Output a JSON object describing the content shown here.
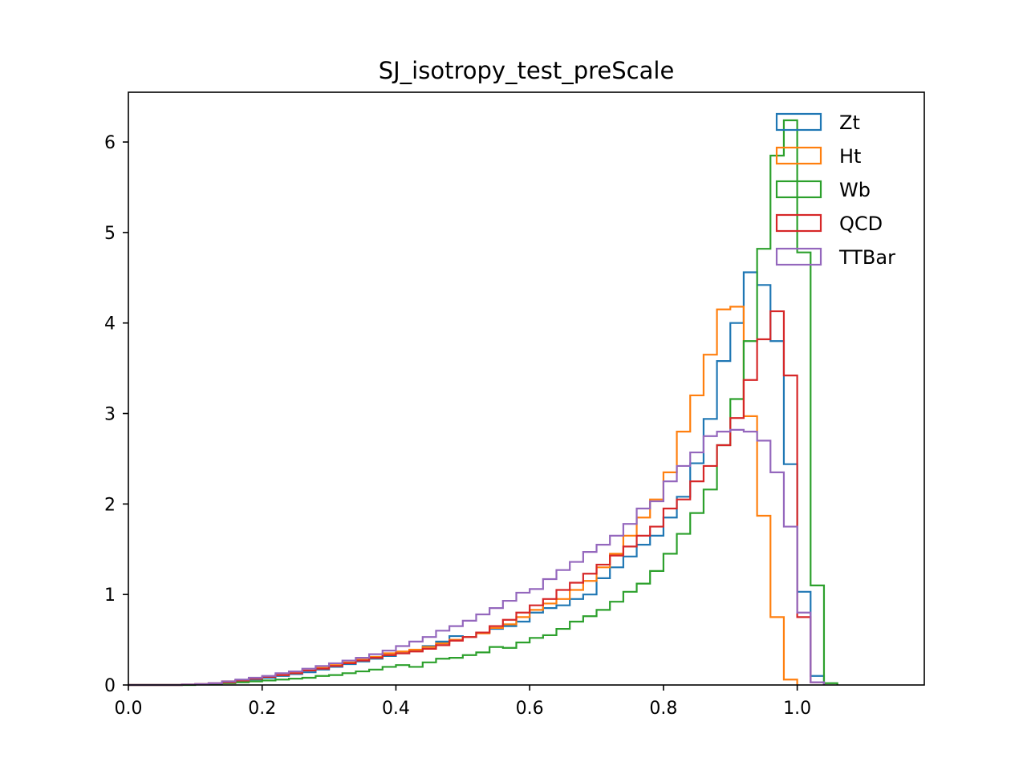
{
  "chart_data": {
    "type": "histogram-step",
    "title": "SJ_isotropy_test_preScale",
    "xlabel": "",
    "ylabel": "",
    "xlim": [
      0.0,
      1.19
    ],
    "ylim": [
      0,
      6.55
    ],
    "bin_start": 0.0,
    "bin_width": 0.02,
    "xticks": [
      0.0,
      0.2,
      0.4,
      0.6,
      0.8,
      1.0
    ],
    "xtick_labels": [
      "0.0",
      "0.2",
      "0.4",
      "0.6",
      "0.8",
      "1.0"
    ],
    "yticks": [
      0,
      1,
      2,
      3,
      4,
      5,
      6
    ],
    "ytick_labels": [
      "0",
      "1",
      "2",
      "3",
      "4",
      "5",
      "6"
    ],
    "grid": false,
    "legend_position": "top-right",
    "series": [
      {
        "name": "Zt",
        "color": "#1f77b4",
        "values": [
          0,
          0,
          0,
          0,
          0.005,
          0.01,
          0.02,
          0.03,
          0.05,
          0.06,
          0.08,
          0.1,
          0.12,
          0.14,
          0.17,
          0.2,
          0.23,
          0.26,
          0.29,
          0.32,
          0.35,
          0.38,
          0.43,
          0.48,
          0.54,
          0.53,
          0.58,
          0.62,
          0.65,
          0.7,
          0.8,
          0.85,
          0.88,
          0.95,
          1.0,
          1.18,
          1.3,
          1.42,
          1.55,
          1.65,
          1.85,
          2.08,
          2.45,
          2.94,
          3.58,
          4.0,
          4.56,
          4.42,
          3.8,
          2.44,
          1.03,
          0.1
        ]
      },
      {
        "name": "Ht",
        "color": "#ff7f0e",
        "values": [
          0,
          0,
          0,
          0,
          0.005,
          0.01,
          0.02,
          0.04,
          0.05,
          0.07,
          0.09,
          0.11,
          0.13,
          0.16,
          0.19,
          0.22,
          0.25,
          0.28,
          0.31,
          0.35,
          0.37,
          0.39,
          0.42,
          0.46,
          0.5,
          0.53,
          0.57,
          0.63,
          0.67,
          0.75,
          0.83,
          0.9,
          0.95,
          1.05,
          1.15,
          1.3,
          1.45,
          1.65,
          1.85,
          2.05,
          2.35,
          2.8,
          3.2,
          3.65,
          4.15,
          4.18,
          2.97,
          1.87,
          0.75,
          0.06
        ]
      },
      {
        "name": "Wb",
        "color": "#2ca02c",
        "values": [
          0,
          0,
          0,
          0,
          0,
          0.005,
          0.01,
          0.02,
          0.03,
          0.04,
          0.05,
          0.06,
          0.07,
          0.08,
          0.1,
          0.11,
          0.13,
          0.15,
          0.17,
          0.2,
          0.22,
          0.2,
          0.25,
          0.29,
          0.3,
          0.33,
          0.36,
          0.42,
          0.41,
          0.47,
          0.52,
          0.55,
          0.62,
          0.7,
          0.76,
          0.83,
          0.92,
          1.03,
          1.12,
          1.26,
          1.45,
          1.67,
          1.9,
          2.16,
          2.65,
          3.16,
          3.8,
          4.82,
          5.85,
          6.24,
          4.78,
          1.1,
          0.02
        ]
      },
      {
        "name": "QCD",
        "color": "#d62728",
        "values": [
          0,
          0,
          0,
          0,
          0.005,
          0.01,
          0.02,
          0.03,
          0.05,
          0.07,
          0.09,
          0.11,
          0.13,
          0.16,
          0.18,
          0.21,
          0.24,
          0.27,
          0.3,
          0.33,
          0.35,
          0.37,
          0.4,
          0.44,
          0.49,
          0.53,
          0.58,
          0.65,
          0.72,
          0.8,
          0.88,
          0.95,
          1.05,
          1.13,
          1.23,
          1.33,
          1.43,
          1.53,
          1.65,
          1.75,
          1.95,
          2.05,
          2.25,
          2.42,
          2.65,
          2.95,
          3.37,
          3.82,
          4.13,
          3.42,
          0.75,
          0.03
        ]
      },
      {
        "name": "TTBar",
        "color": "#9467bd",
        "values": [
          0,
          0,
          0,
          0,
          0.005,
          0.01,
          0.02,
          0.04,
          0.06,
          0.08,
          0.1,
          0.13,
          0.15,
          0.18,
          0.21,
          0.24,
          0.27,
          0.3,
          0.34,
          0.38,
          0.43,
          0.48,
          0.53,
          0.6,
          0.65,
          0.71,
          0.78,
          0.85,
          0.93,
          1.02,
          1.06,
          1.17,
          1.27,
          1.36,
          1.47,
          1.55,
          1.65,
          1.78,
          1.95,
          2.03,
          2.25,
          2.42,
          2.57,
          2.75,
          2.8,
          2.82,
          2.8,
          2.7,
          2.35,
          1.75,
          0.8,
          0.03
        ]
      }
    ]
  }
}
